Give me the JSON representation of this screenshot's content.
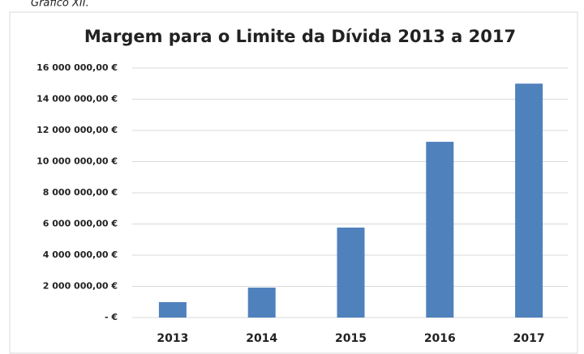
{
  "caption": "Gráfico XII.",
  "chart_data": {
    "type": "bar",
    "title": "Margem para o Limite da Dívida 2013 a 2017",
    "categories": [
      "2013",
      "2014",
      "2015",
      "2016",
      "2017"
    ],
    "values": [
      990000,
      1920000,
      5770000,
      11270000,
      15000000
    ],
    "color": "#4f81bd",
    "ylim": [
      0,
      16000000
    ],
    "yticks": [
      {
        "value": 0,
        "label": "- €"
      },
      {
        "value": 2000000,
        "label": "2 000 000,00 €"
      },
      {
        "value": 4000000,
        "label": "4 000 000,00 €"
      },
      {
        "value": 6000000,
        "label": "6 000 000,00 €"
      },
      {
        "value": 8000000,
        "label": "8 000 000,00 €"
      },
      {
        "value": 10000000,
        "label": "10 000 000,00 €"
      },
      {
        "value": 12000000,
        "label": "12 000 000,00 €"
      },
      {
        "value": 14000000,
        "label": "14 000 000,00 €"
      },
      {
        "value": 16000000,
        "label": "16 000 000,00 €"
      }
    ],
    "grid": true
  }
}
